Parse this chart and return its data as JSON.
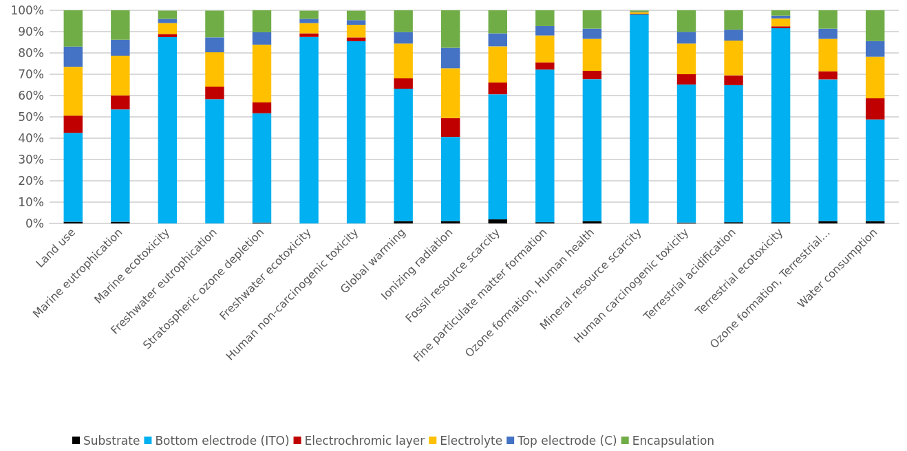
{
  "chart_data": {
    "type": "bar",
    "stacked": true,
    "grid": "y",
    "legend": "bottom",
    "categories": [
      "Land use",
      "Marine eutrophication",
      "Marine ecotoxicity",
      "Freshwater eutrophication",
      "Stratospheric ozone depletion",
      "Freshwater ecotoxicity",
      "Human non-carcinogenic toxicity",
      "Global warming",
      "Ionizing radiation",
      "Fossil resource scarcity",
      "Fine particulate matter formation",
      "Ozone formation, Human health",
      "Mineral resource scarcity",
      "Human carcinogenic toxicity",
      "Terrestrial acidification",
      "Terrestrial ecotoxicity",
      "Ozone formation, Terrestrial…",
      "Water consumption"
    ],
    "ylim": [
      0,
      100
    ],
    "yticks": [
      {
        "value": 0,
        "label": "0%"
      },
      {
        "value": 10,
        "label": "10%"
      },
      {
        "value": 20,
        "label": "20%"
      },
      {
        "value": 30,
        "label": "30%"
      },
      {
        "value": 40,
        "label": "40%"
      },
      {
        "value": 50,
        "label": "50%"
      },
      {
        "value": 60,
        "label": "60%"
      },
      {
        "value": 70,
        "label": "70%"
      },
      {
        "value": 80,
        "label": "80%"
      },
      {
        "value": 90,
        "label": "90%"
      },
      {
        "value": 100,
        "label": "100%"
      }
    ],
    "series": [
      {
        "name": "Substrate",
        "color": "#000000",
        "values": [
          0.8,
          0.8,
          null,
          null,
          0.4,
          null,
          null,
          1.1,
          1.1,
          1.9,
          0.6,
          1.1,
          null,
          0.4,
          0.6,
          0.6,
          1.1,
          1.1
        ]
      },
      {
        "name": "Bottom electrode (ITO)",
        "color": "#00b0f0",
        "values": [
          41.7,
          52.7,
          87.4,
          58.3,
          51.3,
          87.5,
          85.5,
          62.1,
          39.5,
          58.7,
          71.6,
          66.6,
          98.1,
          64.8,
          64.3,
          91.0,
          66.5,
          47.7
        ]
      },
      {
        "name": "Electrochromic layer",
        "color": "#c00000",
        "values": [
          8.1,
          6.6,
          1.5,
          5.9,
          5.1,
          1.7,
          1.8,
          4.9,
          8.8,
          5.5,
          3.4,
          3.9,
          0.3,
          4.8,
          4.6,
          0.9,
          3.8,
          9.9
        ]
      },
      {
        "name": "Electrolyte",
        "color": "#ffc000",
        "values": [
          22.9,
          18.6,
          5.1,
          16.1,
          27.1,
          4.8,
          5.9,
          16.3,
          23.4,
          17.0,
          12.6,
          15.0,
          0.7,
          14.4,
          16.3,
          3.7,
          15.2,
          19.5
        ]
      },
      {
        "name": "Top electrode (C)",
        "color": "#4472c4",
        "values": [
          9.5,
          7.5,
          2.0,
          7.0,
          5.8,
          2.0,
          2.2,
          5.4,
          9.6,
          6.1,
          4.4,
          4.8,
          0.2,
          5.5,
          5.1,
          1.3,
          4.8,
          7.4
        ]
      },
      {
        "name": "Encapsulation",
        "color": "#70ad47",
        "values": [
          17.0,
          13.8,
          3.8,
          12.5,
          10.3,
          3.8,
          4.4,
          10.2,
          17.6,
          10.8,
          7.4,
          8.6,
          0.6,
          10.1,
          9.1,
          2.5,
          8.6,
          14.4
        ]
      }
    ]
  }
}
